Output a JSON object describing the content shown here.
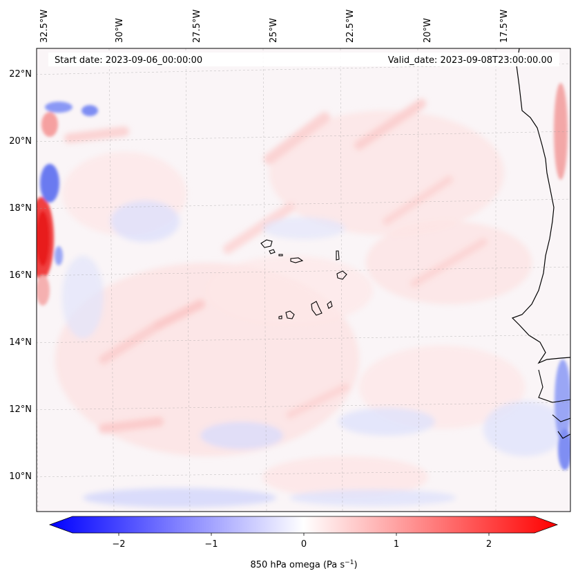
{
  "map": {
    "start_date_label": "Start date: 2023-09-06_00:00:00",
    "valid_date_label": "Valid_date: 2023-09-08T23:00:00.00",
    "lon_labels": [
      "32.5°W",
      "30°W",
      "27.5°W",
      "25°W",
      "22.5°W",
      "20°W",
      "17.5°W"
    ],
    "lat_labels": [
      "22°N",
      "20°N",
      "18°N",
      "16°N",
      "14°N",
      "12°N",
      "10°N"
    ],
    "field_variable": "850 hPa omega",
    "colormap": "bwr"
  },
  "colorbar": {
    "label_main": "850 hPa omega (Pa s",
    "label_sup": "−1",
    "label_close": ")",
    "tick_labels": [
      "−2",
      "−1",
      "0",
      "1",
      "2"
    ],
    "range": [
      -2.6,
      2.6
    ],
    "low_color": "#0000ff",
    "mid_color": "#ffffff",
    "high_color": "#ff0000"
  }
}
